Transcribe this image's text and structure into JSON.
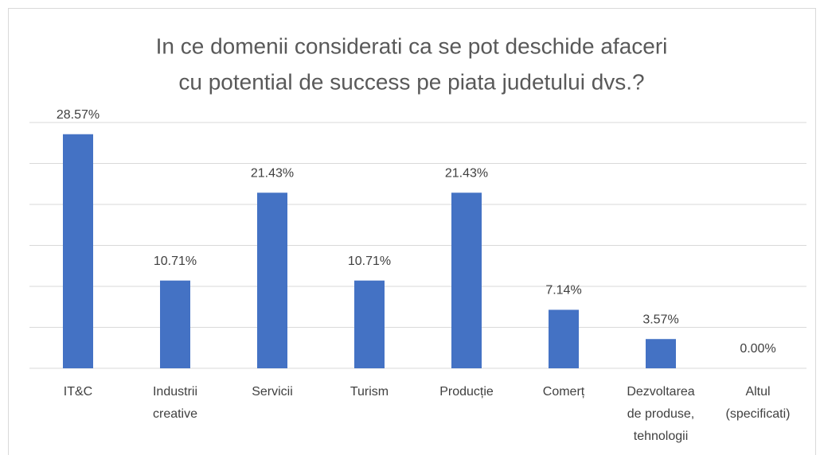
{
  "chart_data": {
    "type": "bar",
    "title": [
      "In ce domenii considerati ca se pot deschide afaceri",
      "cu potential de success pe piata judetului dvs.?"
    ],
    "categories": [
      [
        "IT&C"
      ],
      [
        "Industrii",
        "creative"
      ],
      [
        "Servicii"
      ],
      [
        "Turism"
      ],
      [
        "Producție"
      ],
      [
        "Comerț"
      ],
      [
        "Dezvoltarea",
        "de produse,",
        "tehnologii"
      ],
      [
        "Altul",
        "(specificati)"
      ]
    ],
    "values": [
      28.57,
      10.71,
      21.43,
      10.71,
      21.43,
      7.14,
      3.57,
      0
    ],
    "value_labels": [
      "28.57%",
      "10.71%",
      "21.43%",
      "10.71%",
      "21.43%",
      "7.14%",
      "3.57%",
      "0.00%"
    ],
    "color": "#4472c4",
    "ylim": [
      0,
      30
    ],
    "yticks": [
      0,
      5,
      10,
      15,
      20,
      25,
      30
    ],
    "grid": true,
    "ytick_labels": false
  }
}
